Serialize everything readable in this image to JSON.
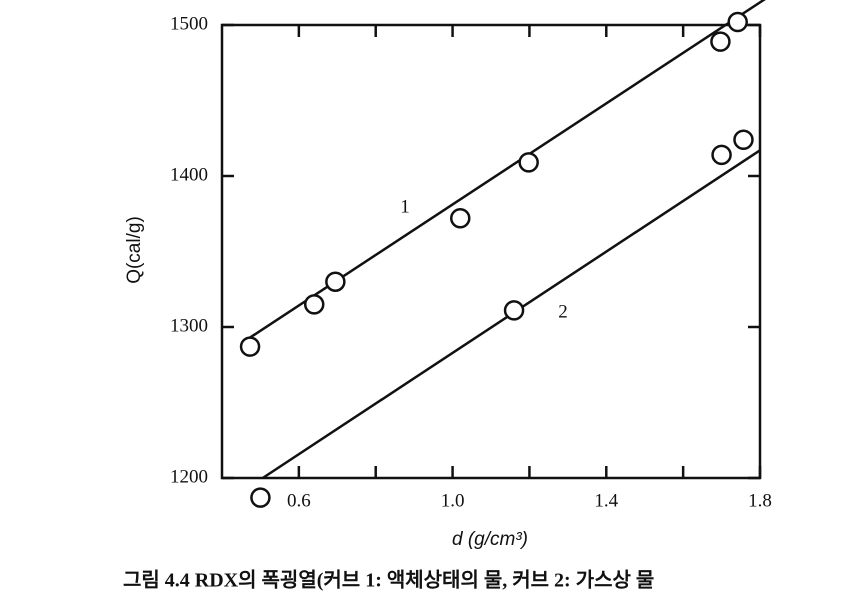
{
  "chart_data": {
    "type": "scatter",
    "x_label": "d (g/cm³)",
    "y_label": "Q(cal/g)",
    "caption": "그림 4.4  RDX의 폭굉열(커브 1: 액체상태의 물, 커브 2: 가스상 물",
    "xlim": [
      0.4,
      1.8
    ],
    "ylim": [
      1200,
      1500
    ],
    "xticks": [
      0.6,
      {
        "value": 1.0,
        "label": "1.0"
      },
      1.4,
      1.8
    ],
    "xminor": [
      0.8,
      1.2,
      1.6
    ],
    "yticks": [
      1200,
      1300,
      1400,
      1500
    ],
    "series": [
      {
        "name": "1",
        "color": "#111111",
        "x": [
          0.473,
          0.64,
          0.695,
          1.02,
          1.198,
          1.697,
          1.742
        ],
        "values": [
          1287,
          1315,
          1330,
          1372,
          1409,
          1489,
          1502
        ],
        "fit_x": [
          0.455,
          1.83
        ],
        "fit_y": [
          1290,
          1520
        ]
      },
      {
        "name": "2",
        "color": "#111111",
        "x": [
          0.5,
          1.16,
          1.7,
          1.757
        ],
        "values": [
          1187,
          1311,
          1414,
          1424
        ],
        "fit_x": [
          0.506,
          1.8
        ],
        "fit_y": [
          1200,
          1417
        ]
      }
    ]
  }
}
